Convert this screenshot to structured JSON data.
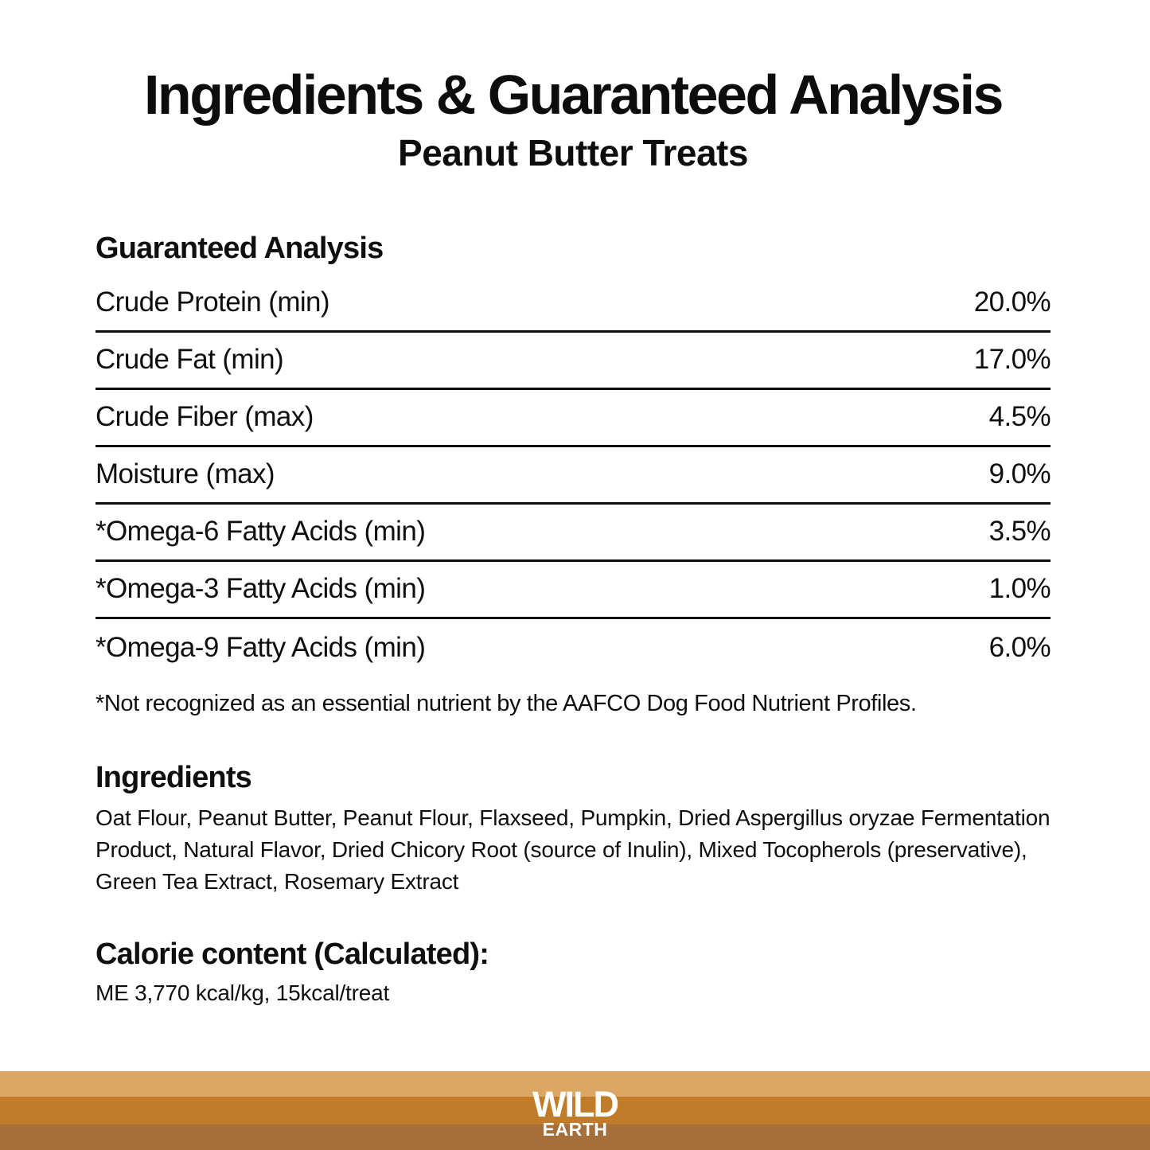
{
  "header": {
    "title": "Ingredients & Guaranteed Analysis",
    "subtitle": "Peanut Butter Treats"
  },
  "guaranteed_analysis": {
    "heading": "Guaranteed Analysis",
    "rows": [
      {
        "label": "Crude Protein (min)",
        "value": "20.0%"
      },
      {
        "label": "Crude Fat (min)",
        "value": "17.0%"
      },
      {
        "label": "Crude Fiber (max)",
        "value": "4.5%"
      },
      {
        "label": "Moisture (max)",
        "value": "9.0%"
      },
      {
        "label": "*Omega-6 Fatty Acids (min)",
        "value": "3.5%"
      },
      {
        "label": "*Omega-3 Fatty Acids (min)",
        "value": "1.0%"
      },
      {
        "label": "*Omega-9 Fatty Acids (min)",
        "value": "6.0%"
      }
    ],
    "footnote": "*Not recognized as an essential nutrient by the AAFCO Dog Food Nutrient Profiles."
  },
  "ingredients": {
    "heading": "Ingredients",
    "text": "Oat Flour, Peanut Butter, Peanut Flour, Flaxseed, Pumpkin, Dried Aspergillus oryzae Fermentation Product, Natural Flavor, Dried Chicory Root (source of Inulin), Mixed Tocopherols (preservative), Green Tea Extract, Rosemary Extract"
  },
  "calorie_content": {
    "heading": "Calorie content (Calculated):",
    "text": "ME 3,770 kcal/kg, 15kcal/treat"
  },
  "footer": {
    "brand_line1": "WILD",
    "brand_line2": "EARTH",
    "stripe_colors": [
      "#dca763",
      "#c07c28",
      "#a56f3b"
    ],
    "brand_text_color": "#ffffff"
  }
}
